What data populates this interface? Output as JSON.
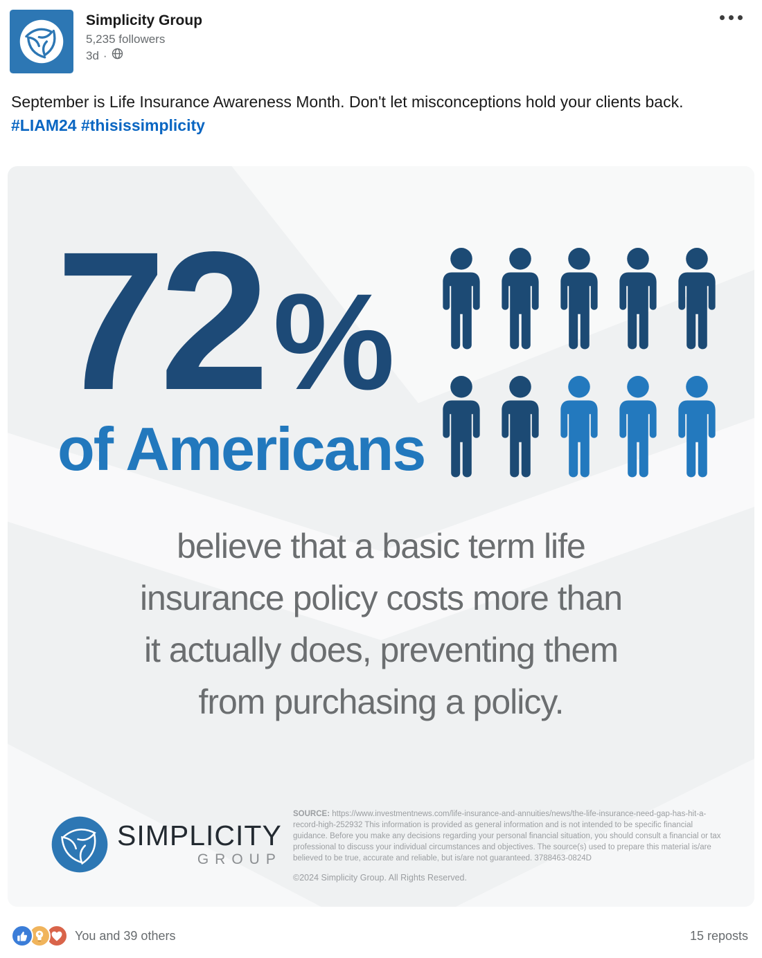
{
  "header": {
    "name": "Simplicity Group",
    "followers": "5,235 followers",
    "timestamp": "3d",
    "meta_separator": "·"
  },
  "post": {
    "text": "September is Life Insurance Awareness Month. Don't let misconceptions hold your clients back.",
    "hashtags": [
      "#LIAM24",
      "#thisissimplicity"
    ]
  },
  "infographic": {
    "stat_number": "72",
    "stat_percent": "%",
    "stat_subject": "of Americans",
    "body_lines": [
      "believe that a basic term life",
      "insurance policy costs more than",
      "it actually does, preventing them",
      "from purchasing a policy."
    ],
    "people": {
      "total": 10,
      "dark_count": 7,
      "light_count": 3,
      "fills": [
        "dark",
        "dark",
        "dark",
        "dark",
        "dark",
        "dark",
        "dark",
        "light",
        "light",
        "light"
      ]
    },
    "logo": {
      "line1": "SIMPLICITY",
      "line2": "GROUP"
    },
    "disclaimer": {
      "source_label": "SOURCE:",
      "source_url": "https://www.investmentnews.com/life-insurance-and-annuities/news/the-life-insurance-need-gap-has-hit-a-record-high-252932",
      "body": "This information is provided as general information and is not intended to be specific financial guidance.  Before you make any decisions regarding your personal financial situation, you should consult a financial or tax professional to discuss your individual circumstances and objectives. The source(s) used to prepare this material is/are believed to be true, accurate and reliable, but is/are not guaranteed. 3788463-0824D",
      "copyright": "©2024 Simplicity Group. All Rights Reserved."
    }
  },
  "social": {
    "reactions_text": "You and 39 others",
    "reposts_text": "15 reposts",
    "reaction_types": [
      "like",
      "insightful",
      "love"
    ]
  },
  "colors": {
    "accent_dark": "#1d4a77",
    "accent_blue": "#2278bd",
    "person_dark": "#1c4a74",
    "person_light": "#2379be",
    "hashtag": "#0a66c2",
    "like": "#3b7dd8",
    "insightful": "#f0b45c",
    "love": "#d9644a",
    "logo_blue": "#2d77b4"
  }
}
